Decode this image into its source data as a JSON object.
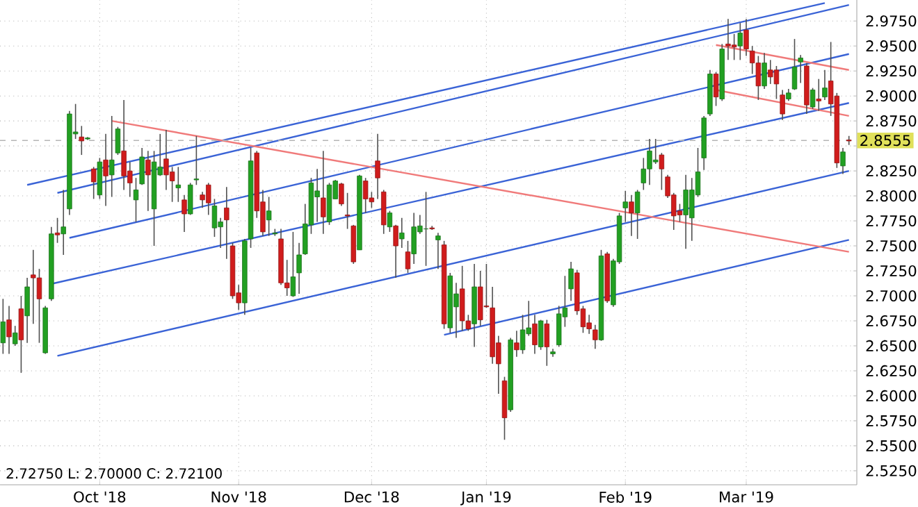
{
  "chart_data": {
    "type": "candlestick",
    "categories": [
      null,
      null,
      null,
      null,
      null,
      null,
      null,
      null,
      null,
      null,
      null,
      null,
      null,
      null,
      null,
      null,
      "Oct '18",
      null,
      null,
      null,
      null,
      null,
      null,
      null,
      null,
      null,
      null,
      null,
      null,
      null,
      null,
      null,
      null,
      null,
      null,
      null,
      null,
      null,
      null,
      "Nov '18",
      null,
      null,
      null,
      null,
      null,
      null,
      null,
      null,
      null,
      null,
      null,
      null,
      null,
      null,
      null,
      null,
      null,
      null,
      null,
      null,
      null,
      "Dec '18",
      null,
      null,
      null,
      null,
      null,
      null,
      null,
      null,
      null,
      null,
      null,
      null,
      null,
      null,
      null,
      null,
      null,
      null,
      "Jan '19",
      null,
      null,
      null,
      null,
      null,
      null,
      null,
      null,
      null,
      null,
      null,
      null,
      null,
      null,
      null,
      null,
      null,
      null,
      null,
      null,
      null,
      null,
      "Feb '19",
      null,
      null,
      null,
      null,
      null,
      null,
      null,
      null,
      null,
      null,
      null,
      null,
      null,
      null,
      null,
      null,
      null,
      null,
      null,
      "Mar '19",
      null,
      null,
      null,
      null,
      null,
      null,
      null,
      null,
      null,
      null,
      null,
      null,
      null,
      null,
      null,
      null,
      null
    ],
    "ohlc": [
      [
        2.653,
        2.697,
        2.642,
        2.674
      ],
      [
        2.676,
        2.69,
        2.642,
        2.659
      ],
      [
        2.652,
        2.67,
        2.65,
        2.663
      ],
      [
        2.687,
        2.7,
        2.623,
        2.656
      ],
      [
        2.68,
        2.718,
        2.653,
        2.709
      ],
      [
        2.721,
        2.746,
        2.672,
        2.718
      ],
      [
        2.718,
        2.727,
        2.653,
        2.697
      ],
      [
        2.643,
        2.69,
        2.642,
        2.688
      ],
      [
        2.697,
        2.769,
        2.695,
        2.762
      ],
      [
        2.763,
        2.778,
        2.753,
        2.761
      ],
      [
        2.762,
        2.806,
        2.741,
        2.769
      ],
      [
        2.787,
        2.885,
        2.781,
        2.882
      ],
      [
        2.862,
        2.892,
        2.857,
        2.864
      ],
      [
        2.859,
        2.87,
        2.841,
        2.855
      ],
      [
        2.857,
        2.859,
        2.856,
        2.858
      ],
      [
        2.827,
        2.829,
        2.797,
        2.814
      ],
      [
        2.801,
        2.838,
        2.797,
        2.834
      ],
      [
        2.836,
        2.862,
        2.79,
        2.82
      ],
      [
        2.821,
        2.88,
        2.799,
        2.836
      ],
      [
        2.843,
        2.869,
        2.841,
        2.867
      ],
      [
        2.845,
        2.896,
        2.806,
        2.82
      ],
      [
        2.825,
        2.834,
        2.799,
        2.813
      ],
      [
        2.796,
        2.818,
        2.774,
        2.806
      ],
      [
        2.812,
        2.848,
        2.811,
        2.839
      ],
      [
        2.836,
        2.845,
        2.785,
        2.821
      ],
      [
        2.787,
        2.845,
        2.75,
        2.834
      ],
      [
        2.821,
        2.862,
        2.82,
        2.829
      ],
      [
        2.837,
        2.866,
        2.806,
        2.821
      ],
      [
        2.824,
        2.829,
        2.794,
        2.815
      ],
      [
        2.808,
        2.829,
        2.794,
        2.811
      ],
      [
        2.796,
        2.801,
        2.764,
        2.782
      ],
      [
        2.782,
        2.813,
        2.781,
        2.811
      ],
      [
        2.816,
        2.86,
        2.811,
        2.817
      ],
      [
        2.801,
        2.804,
        2.788,
        2.796
      ],
      [
        2.811,
        2.813,
        2.781,
        2.793
      ],
      [
        2.768,
        2.797,
        2.759,
        2.79
      ],
      [
        2.769,
        2.778,
        2.748,
        2.774
      ],
      [
        2.788,
        2.809,
        2.737,
        2.776
      ],
      [
        2.75,
        2.753,
        2.697,
        2.7
      ],
      [
        2.703,
        2.711,
        2.686,
        2.693
      ],
      [
        2.693,
        2.757,
        2.681,
        2.755
      ],
      [
        2.757,
        2.848,
        2.748,
        2.835
      ],
      [
        2.843,
        2.845,
        2.778,
        2.785
      ],
      [
        2.794,
        2.806,
        2.76,
        2.764
      ],
      [
        2.776,
        2.799,
        2.76,
        2.785
      ],
      [
        2.762,
        2.767,
        2.76,
        2.763
      ],
      [
        2.757,
        2.767,
        2.711,
        2.713
      ],
      [
        2.713,
        2.736,
        2.7,
        2.708
      ],
      [
        2.7,
        2.764,
        2.699,
        2.719
      ],
      [
        2.723,
        2.753,
        2.702,
        2.741
      ],
      [
        2.742,
        2.792,
        2.741,
        2.772
      ],
      [
        2.771,
        2.818,
        2.762,
        2.813
      ],
      [
        2.799,
        2.827,
        2.774,
        2.805
      ],
      [
        2.798,
        2.845,
        2.762,
        2.779
      ],
      [
        2.774,
        2.813,
        2.771,
        2.811
      ],
      [
        2.797,
        2.816,
        2.797,
        2.815
      ],
      [
        2.812,
        2.813,
        2.79,
        2.792
      ],
      [
        2.781,
        2.803,
        2.767,
        2.78
      ],
      [
        2.77,
        2.771,
        2.732,
        2.734
      ],
      [
        2.746,
        2.821,
        2.746,
        2.82
      ],
      [
        2.815,
        2.818,
        2.783,
        2.797
      ],
      [
        2.798,
        2.804,
        2.788,
        2.794
      ],
      [
        2.835,
        2.862,
        2.797,
        2.818
      ],
      [
        2.804,
        2.806,
        2.762,
        2.771
      ],
      [
        2.769,
        2.785,
        2.764,
        2.783
      ],
      [
        2.77,
        2.771,
        2.718,
        2.75
      ],
      [
        2.757,
        2.778,
        2.748,
        2.763
      ],
      [
        2.744,
        2.755,
        2.723,
        2.727
      ],
      [
        2.742,
        2.783,
        2.732,
        2.769
      ],
      [
        2.764,
        2.781,
        2.762,
        2.77
      ],
      [
        2.767,
        2.804,
        2.73,
        2.767
      ],
      [
        2.768,
        2.77,
        2.766,
        2.767
      ],
      [
        2.756,
        2.763,
        2.727,
        2.76
      ],
      [
        2.751,
        2.755,
        2.667,
        2.672
      ],
      [
        2.668,
        2.723,
        2.663,
        2.72
      ],
      [
        2.689,
        2.713,
        2.658,
        2.702
      ],
      [
        2.707,
        2.73,
        2.665,
        2.675
      ],
      [
        2.675,
        2.681,
        2.665,
        2.667
      ],
      [
        2.672,
        2.732,
        2.649,
        2.709
      ],
      [
        2.709,
        2.725,
        2.67,
        2.676
      ],
      [
        2.69,
        2.732,
        2.688,
        2.689
      ],
      [
        2.688,
        2.709,
        2.632,
        2.639
      ],
      [
        2.653,
        2.66,
        2.602,
        2.632
      ],
      [
        2.615,
        2.619,
        2.556,
        2.578
      ],
      [
        2.586,
        2.658,
        2.584,
        2.656
      ],
      [
        2.653,
        2.665,
        2.639,
        2.646
      ],
      [
        2.646,
        2.681,
        2.642,
        2.666
      ],
      [
        2.662,
        2.695,
        2.66,
        2.668
      ],
      [
        2.672,
        2.681,
        2.642,
        2.651
      ],
      [
        2.649,
        2.676,
        2.646,
        2.675
      ],
      [
        2.672,
        2.676,
        2.63,
        2.649
      ],
      [
        2.642,
        2.647,
        2.639,
        2.644
      ],
      [
        2.651,
        2.69,
        2.649,
        2.682
      ],
      [
        2.679,
        2.72,
        2.669,
        2.688
      ],
      [
        2.707,
        2.734,
        2.695,
        2.727
      ],
      [
        2.723,
        2.726,
        2.681,
        2.685
      ],
      [
        2.687,
        2.69,
        2.663,
        2.669
      ],
      [
        2.673,
        2.681,
        2.662,
        2.667
      ],
      [
        2.666,
        2.671,
        2.647,
        2.656
      ],
      [
        2.656,
        2.746,
        2.655,
        2.74
      ],
      [
        2.742,
        2.744,
        2.693,
        2.695
      ],
      [
        2.691,
        2.737,
        2.689,
        2.735
      ],
      [
        2.734,
        2.783,
        2.732,
        2.78
      ],
      [
        2.788,
        2.805,
        2.774,
        2.794
      ],
      [
        2.794,
        2.801,
        2.76,
        2.783
      ],
      [
        2.783,
        2.806,
        2.757,
        2.804
      ],
      [
        2.813,
        2.838,
        2.806,
        2.827
      ],
      [
        2.827,
        2.857,
        2.811,
        2.845
      ],
      [
        2.834,
        2.857,
        2.832,
        2.836
      ],
      [
        2.841,
        2.843,
        2.806,
        2.827
      ],
      [
        2.819,
        2.821,
        2.798,
        2.8
      ],
      [
        2.801,
        2.803,
        2.766,
        2.78
      ],
      [
        2.785,
        2.792,
        2.774,
        2.781
      ],
      [
        2.781,
        2.821,
        2.747,
        2.806
      ],
      [
        2.778,
        2.818,
        2.755,
        2.806
      ],
      [
        2.801,
        2.848,
        2.799,
        2.824
      ],
      [
        2.838,
        2.88,
        2.826,
        2.878
      ],
      [
        2.882,
        2.926,
        2.88,
        2.922
      ],
      [
        2.922,
        2.924,
        2.89,
        2.899
      ],
      [
        2.897,
        2.952,
        2.895,
        2.947
      ],
      [
        2.952,
        2.977,
        2.936,
        2.95
      ],
      [
        2.951,
        2.962,
        2.936,
        2.949
      ],
      [
        2.95,
        2.973,
        2.936,
        2.963
      ],
      [
        2.966,
        2.977,
        2.94,
        2.947
      ],
      [
        2.945,
        2.95,
        2.922,
        2.933
      ],
      [
        2.933,
        2.94,
        2.896,
        2.91
      ],
      [
        2.91,
        2.943,
        2.907,
        2.933
      ],
      [
        2.926,
        2.936,
        2.912,
        2.919
      ],
      [
        2.926,
        2.93,
        2.897,
        2.912
      ],
      [
        2.901,
        2.906,
        2.876,
        2.882
      ],
      [
        2.897,
        2.907,
        2.895,
        2.903
      ],
      [
        2.907,
        2.957,
        2.906,
        2.929
      ],
      [
        2.934,
        2.941,
        2.913,
        2.938
      ],
      [
        2.93,
        2.933,
        2.882,
        2.891
      ],
      [
        2.889,
        2.908,
        2.887,
        2.906
      ],
      [
        2.897,
        2.917,
        2.885,
        2.895
      ],
      [
        2.899,
        2.926,
        2.896,
        2.908
      ],
      [
        2.915,
        2.954,
        2.88,
        2.892
      ],
      [
        2.9,
        2.903,
        2.828,
        2.833
      ],
      [
        2.83,
        2.848,
        2.822,
        2.844
      ],
      [
        2.856,
        2.86,
        2.851,
        2.855
      ]
    ],
    "ylim": [
      2.511,
      2.996
    ],
    "yticks": [
      {
        "value": 2.525,
        "label": "2.5250"
      },
      {
        "value": 2.55,
        "label": "2.5500"
      },
      {
        "value": 2.575,
        "label": "2.5750"
      },
      {
        "value": 2.6,
        "label": "2.6000"
      },
      {
        "value": 2.625,
        "label": "2.6250"
      },
      {
        "value": 2.65,
        "label": "2.6500"
      },
      {
        "value": 2.675,
        "label": "2.6750"
      },
      {
        "value": 2.7,
        "label": "2.7000"
      },
      {
        "value": 2.725,
        "label": "2.7250"
      },
      {
        "value": 2.75,
        "label": "2.7500"
      },
      {
        "value": 2.775,
        "label": "2.7750"
      },
      {
        "value": 2.8,
        "label": "2.8000"
      },
      {
        "value": 2.825,
        "label": "2.8250"
      },
      {
        "value": 2.85,
        "label": null
      },
      {
        "value": 2.875,
        "label": "2.8750"
      },
      {
        "value": 2.9,
        "label": "2.9000"
      },
      {
        "value": 2.925,
        "label": "2.9250"
      },
      {
        "value": 2.95,
        "label": "2.9500"
      },
      {
        "value": 2.975,
        "label": "2.9750"
      }
    ],
    "grid": true,
    "series": [
      {
        "type": "line",
        "color": "#3a63d6",
        "values": [
          null,
          null,
          null,
          null,
          2.811,
          null,
          null,
          null,
          null,
          null,
          null,
          null,
          null,
          null,
          null,
          null,
          null,
          null,
          null,
          null,
          null,
          null,
          null,
          null,
          null,
          null,
          null,
          null,
          null,
          null,
          null,
          null,
          null,
          null,
          null,
          null,
          null,
          null,
          null,
          null,
          null,
          null,
          null,
          null,
          null,
          null,
          null,
          null,
          null,
          null,
          null,
          null,
          null,
          null,
          null,
          null,
          null,
          null,
          null,
          null,
          null,
          null,
          null,
          null,
          null,
          null,
          null,
          null,
          null,
          null,
          null,
          null,
          null,
          null,
          null,
          null,
          null,
          null,
          null,
          null,
          null,
          null,
          null,
          null,
          null,
          null,
          null,
          null,
          null,
          null,
          null,
          null,
          null,
          null,
          null,
          null,
          null,
          null,
          null,
          null,
          null,
          null,
          null,
          null,
          null,
          null,
          null,
          null,
          null,
          null,
          null,
          null,
          null,
          null,
          null,
          null,
          null,
          null,
          null,
          null,
          null,
          null,
          null,
          null,
          null,
          null,
          null,
          null,
          null,
          null,
          null,
          null,
          null,
          null,
          null,
          null,
          2.993,
          null,
          null,
          null,
          null
        ]
      },
      {
        "type": "line",
        "color": "#3a63d6",
        "values": [
          null,
          null,
          null,
          null,
          null,
          null,
          null,
          null,
          null,
          2.803,
          null,
          null,
          null,
          null,
          null,
          null,
          null,
          null,
          null,
          null,
          null,
          null,
          null,
          null,
          null,
          null,
          null,
          null,
          null,
          null,
          null,
          null,
          null,
          null,
          null,
          null,
          null,
          null,
          null,
          null,
          null,
          null,
          null,
          null,
          null,
          null,
          null,
          null,
          null,
          null,
          null,
          null,
          null,
          null,
          null,
          null,
          null,
          null,
          null,
          null,
          null,
          null,
          null,
          null,
          null,
          null,
          null,
          null,
          null,
          null,
          null,
          null,
          null,
          null,
          null,
          null,
          null,
          null,
          null,
          null,
          null,
          null,
          null,
          null,
          null,
          null,
          null,
          null,
          null,
          null,
          null,
          null,
          null,
          null,
          null,
          null,
          null,
          null,
          null,
          null,
          null,
          null,
          null,
          null,
          null,
          null,
          null,
          null,
          null,
          null,
          null,
          null,
          null,
          null,
          null,
          null,
          null,
          null,
          null,
          null,
          null,
          null,
          null,
          null,
          null,
          null,
          null,
          null,
          null,
          null,
          null,
          null,
          null,
          null,
          null,
          null,
          null,
          null,
          null,
          null,
          2.991
        ]
      },
      {
        "type": "line",
        "color": "#3a63d6",
        "values": [
          null,
          null,
          null,
          null,
          null,
          null,
          null,
          null,
          null,
          null,
          null,
          2.758,
          null,
          null,
          null,
          null,
          null,
          null,
          null,
          null,
          null,
          null,
          null,
          null,
          null,
          null,
          null,
          null,
          null,
          null,
          null,
          null,
          null,
          null,
          null,
          null,
          null,
          null,
          null,
          null,
          null,
          null,
          null,
          null,
          null,
          null,
          null,
          null,
          null,
          null,
          null,
          null,
          null,
          null,
          null,
          null,
          null,
          null,
          null,
          null,
          null,
          null,
          null,
          null,
          null,
          null,
          null,
          null,
          null,
          null,
          null,
          null,
          null,
          null,
          null,
          null,
          null,
          null,
          null,
          null,
          null,
          null,
          null,
          null,
          null,
          null,
          null,
          null,
          null,
          null,
          null,
          null,
          null,
          null,
          null,
          null,
          null,
          null,
          null,
          null,
          null,
          null,
          null,
          null,
          null,
          null,
          null,
          null,
          null,
          null,
          null,
          null,
          null,
          null,
          null,
          null,
          null,
          null,
          null,
          null,
          null,
          null,
          null,
          null,
          null,
          null,
          null,
          null,
          null,
          null,
          null,
          null,
          null,
          null,
          null,
          null,
          null,
          null,
          null,
          null,
          2.942
        ]
      },
      {
        "type": "line",
        "color": "#3a63d6",
        "values": [
          null,
          null,
          null,
          null,
          null,
          null,
          null,
          null,
          2.712,
          null,
          null,
          null,
          null,
          null,
          null,
          null,
          null,
          null,
          null,
          null,
          null,
          null,
          null,
          null,
          null,
          null,
          null,
          null,
          null,
          null,
          null,
          null,
          null,
          null,
          null,
          null,
          null,
          null,
          null,
          null,
          null,
          null,
          null,
          null,
          null,
          null,
          null,
          null,
          null,
          null,
          null,
          null,
          null,
          null,
          null,
          null,
          null,
          null,
          null,
          null,
          null,
          null,
          null,
          null,
          null,
          null,
          null,
          null,
          null,
          null,
          null,
          null,
          null,
          null,
          null,
          null,
          null,
          null,
          null,
          null,
          null,
          null,
          null,
          null,
          null,
          null,
          null,
          null,
          null,
          null,
          null,
          null,
          null,
          null,
          null,
          null,
          null,
          null,
          null,
          null,
          null,
          null,
          null,
          null,
          null,
          null,
          null,
          null,
          null,
          null,
          null,
          null,
          null,
          null,
          null,
          null,
          null,
          null,
          null,
          null,
          null,
          null,
          null,
          null,
          null,
          null,
          null,
          null,
          null,
          null,
          null,
          null,
          null,
          null,
          null,
          null,
          null,
          null,
          null,
          null,
          2.893
        ]
      },
      {
        "type": "line",
        "color": "#3a63d6",
        "values": [
          null,
          null,
          null,
          null,
          null,
          null,
          null,
          null,
          null,
          2.64,
          null,
          null,
          null,
          null,
          null,
          null,
          null,
          null,
          null,
          null,
          null,
          null,
          null,
          null,
          null,
          null,
          null,
          null,
          null,
          null,
          null,
          null,
          null,
          null,
          null,
          null,
          null,
          null,
          null,
          null,
          null,
          null,
          null,
          null,
          null,
          null,
          null,
          null,
          null,
          null,
          null,
          null,
          null,
          null,
          null,
          null,
          null,
          null,
          null,
          null,
          null,
          null,
          null,
          null,
          null,
          null,
          null,
          null,
          null,
          null,
          null,
          null,
          null,
          null,
          null,
          null,
          null,
          null,
          null,
          null,
          null,
          null,
          null,
          null,
          null,
          null,
          null,
          null,
          null,
          null,
          null,
          null,
          null,
          null,
          null,
          null,
          null,
          null,
          null,
          null,
          null,
          null,
          null,
          null,
          null,
          null,
          null,
          null,
          null,
          null,
          null,
          null,
          null,
          null,
          null,
          null,
          null,
          null,
          null,
          null,
          null,
          null,
          null,
          null,
          null,
          null,
          null,
          null,
          null,
          null,
          null,
          null,
          null,
          null,
          null,
          null,
          null,
          null,
          null,
          null,
          2.825
        ]
      },
      {
        "type": "line",
        "color": "#3a63d6",
        "values": [
          null,
          null,
          null,
          null,
          null,
          null,
          null,
          null,
          null,
          null,
          null,
          null,
          null,
          null,
          null,
          null,
          null,
          null,
          null,
          null,
          null,
          null,
          null,
          null,
          null,
          null,
          null,
          null,
          null,
          null,
          null,
          null,
          null,
          null,
          null,
          null,
          null,
          null,
          null,
          null,
          null,
          null,
          null,
          null,
          null,
          null,
          null,
          null,
          null,
          null,
          null,
          null,
          null,
          null,
          null,
          null,
          null,
          null,
          null,
          null,
          null,
          null,
          null,
          null,
          null,
          null,
          null,
          null,
          null,
          null,
          null,
          null,
          null,
          2.661,
          null,
          null,
          null,
          null,
          null,
          null,
          null,
          null,
          null,
          null,
          null,
          null,
          null,
          null,
          null,
          null,
          null,
          null,
          null,
          null,
          null,
          null,
          null,
          null,
          null,
          null,
          null,
          null,
          null,
          null,
          null,
          null,
          null,
          null,
          null,
          null,
          null,
          null,
          null,
          null,
          null,
          null,
          null,
          null,
          null,
          null,
          null,
          null,
          null,
          null,
          null,
          null,
          null,
          null,
          null,
          null,
          null,
          null,
          null,
          null,
          null,
          null,
          null,
          null,
          null,
          null,
          2.756
        ]
      },
      {
        "type": "line",
        "color": "#f07a7a",
        "values": [
          null,
          null,
          null,
          null,
          null,
          null,
          null,
          null,
          null,
          null,
          null,
          null,
          null,
          null,
          null,
          null,
          null,
          null,
          2.875,
          null,
          null,
          null,
          null,
          null,
          null,
          null,
          null,
          null,
          null,
          null,
          null,
          null,
          null,
          null,
          null,
          null,
          null,
          null,
          null,
          null,
          null,
          null,
          null,
          null,
          null,
          null,
          null,
          null,
          null,
          null,
          null,
          null,
          null,
          null,
          null,
          null,
          null,
          null,
          null,
          null,
          null,
          null,
          null,
          null,
          null,
          null,
          null,
          null,
          null,
          null,
          null,
          null,
          null,
          null,
          null,
          null,
          null,
          null,
          null,
          null,
          null,
          null,
          null,
          null,
          null,
          null,
          null,
          null,
          null,
          null,
          null,
          null,
          null,
          null,
          null,
          null,
          null,
          null,
          null,
          null,
          null,
          null,
          null,
          null,
          null,
          null,
          null,
          null,
          null,
          null,
          null,
          null,
          null,
          null,
          null,
          null,
          null,
          null,
          null,
          null,
          null,
          null,
          null,
          null,
          null,
          null,
          null,
          null,
          null,
          null,
          null,
          null,
          null,
          null,
          null,
          null,
          null,
          null,
          null,
          null,
          2.744
        ]
      },
      {
        "type": "line",
        "color": "#f07a7a",
        "values": [
          null,
          null,
          null,
          null,
          null,
          null,
          null,
          null,
          null,
          null,
          null,
          null,
          null,
          null,
          null,
          null,
          null,
          null,
          null,
          null,
          null,
          null,
          null,
          null,
          null,
          null,
          null,
          null,
          null,
          null,
          null,
          null,
          null,
          null,
          null,
          null,
          null,
          null,
          null,
          null,
          null,
          null,
          null,
          null,
          null,
          null,
          null,
          null,
          null,
          null,
          null,
          null,
          null,
          null,
          null,
          null,
          null,
          null,
          null,
          null,
          null,
          null,
          null,
          null,
          null,
          null,
          null,
          null,
          null,
          null,
          null,
          null,
          null,
          null,
          null,
          null,
          null,
          null,
          null,
          null,
          null,
          null,
          null,
          null,
          null,
          null,
          null,
          null,
          null,
          null,
          null,
          null,
          null,
          null,
          null,
          null,
          null,
          null,
          null,
          null,
          null,
          null,
          null,
          null,
          null,
          null,
          null,
          null,
          null,
          null,
          null,
          null,
          null,
          null,
          null,
          null,
          null,
          null,
          2.951,
          null,
          null,
          null,
          null,
          null,
          null,
          null,
          null,
          null,
          null,
          null,
          null,
          null,
          null,
          null,
          null,
          null,
          null,
          null,
          null,
          null,
          2.926
        ]
      },
      {
        "type": "line",
        "color": "#f07a7a",
        "values": [
          null,
          null,
          null,
          null,
          null,
          null,
          null,
          null,
          null,
          null,
          null,
          null,
          null,
          null,
          null,
          null,
          null,
          null,
          null,
          null,
          null,
          null,
          null,
          null,
          null,
          null,
          null,
          null,
          null,
          null,
          null,
          null,
          null,
          null,
          null,
          null,
          null,
          null,
          null,
          null,
          null,
          null,
          null,
          null,
          null,
          null,
          null,
          null,
          null,
          null,
          null,
          null,
          null,
          null,
          null,
          null,
          null,
          null,
          null,
          null,
          null,
          null,
          null,
          null,
          null,
          null,
          null,
          null,
          null,
          null,
          null,
          null,
          null,
          null,
          null,
          null,
          null,
          null,
          null,
          null,
          null,
          null,
          null,
          null,
          null,
          null,
          null,
          null,
          null,
          null,
          null,
          null,
          null,
          null,
          null,
          null,
          null,
          null,
          null,
          null,
          null,
          null,
          null,
          null,
          null,
          null,
          null,
          null,
          null,
          null,
          null,
          null,
          null,
          null,
          null,
          null,
          null,
          null,
          2.906,
          null,
          null,
          null,
          null,
          null,
          null,
          null,
          null,
          null,
          null,
          null,
          null,
          null,
          null,
          null,
          null,
          null,
          null,
          null,
          null,
          null,
          2.88
        ]
      }
    ],
    "ref_lines": [
      {
        "axis": "y",
        "value": 2.8555,
        "label": "2.8555",
        "color": "#b4b4b4",
        "line_style": "dashed"
      }
    ],
    "annotations": [
      "2.72750  L: 2.70000  C: 2.72100"
    ]
  }
}
